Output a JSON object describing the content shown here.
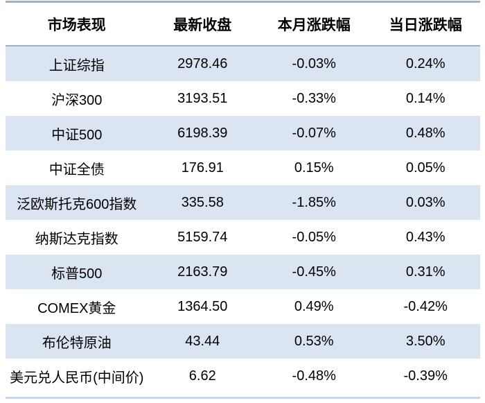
{
  "chart_data": {
    "type": "table",
    "columns": [
      "市场表现",
      "最新收盘",
      "本月涨跌幅",
      "当日涨跌幅"
    ],
    "rows": [
      [
        "上证综指",
        "2978.46",
        "-0.03%",
        "0.24%"
      ],
      [
        "沪深300",
        "3193.51",
        "-0.33%",
        "0.14%"
      ],
      [
        "中证500",
        "6198.39",
        "-0.07%",
        "0.48%"
      ],
      [
        "中证全债",
        "176.91",
        "0.15%",
        "0.05%"
      ],
      [
        "泛欧斯托克600指数",
        "335.58",
        "-1.85%",
        "0.03%"
      ],
      [
        "纳斯达克指数",
        "5159.74",
        "-0.05%",
        "0.43%"
      ],
      [
        "标普500",
        "2163.79",
        "-0.45%",
        "0.31%"
      ],
      [
        "COMEX黄金",
        "1364.50",
        "0.49%",
        "-0.42%"
      ],
      [
        "布伦特原油",
        "43.44",
        "0.53%",
        "3.50%"
      ],
      [
        "美元兑人民币(中间价)",
        "6.62",
        "-0.48%",
        "-0.39%"
      ]
    ],
    "layout": {
      "header_bold": true,
      "alternating_rows": true,
      "alt_row_indices": [
        0,
        2,
        4,
        6,
        8
      ],
      "text_align": "center"
    },
    "colors": {
      "text": "#000000",
      "row_alt_bg": "#dbe5f1",
      "row_bg": "#ffffff",
      "top_border": "#95b3d7",
      "header_border": "#95b3d7",
      "bottom_border": "#c7d6ea"
    }
  }
}
